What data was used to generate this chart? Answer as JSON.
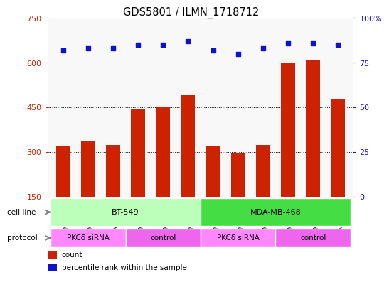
{
  "title": "GDS5801 / ILMN_1718712",
  "samples": [
    "GSM1338298",
    "GSM1338302",
    "GSM1338306",
    "GSM1338297",
    "GSM1338301",
    "GSM1338305",
    "GSM1338296",
    "GSM1338300",
    "GSM1338304",
    "GSM1338295",
    "GSM1338299",
    "GSM1338303"
  ],
  "bar_values": [
    320,
    335,
    325,
    445,
    450,
    490,
    320,
    295,
    325,
    600,
    610,
    480
  ],
  "dot_values": [
    82,
    83,
    83,
    85,
    85,
    87,
    82,
    80,
    83,
    86,
    86,
    85
  ],
  "bar_color": "#cc2200",
  "dot_color": "#1111cc",
  "ylim_left": [
    150,
    750
  ],
  "yticks_left": [
    150,
    300,
    450,
    600,
    750
  ],
  "ylim_right": [
    0,
    100
  ],
  "yticks_right": [
    0,
    25,
    50,
    75,
    100
  ],
  "cell_line_groups": [
    {
      "label": "BT-549",
      "start": 0,
      "end": 5,
      "color": "#bbffbb"
    },
    {
      "label": "MDA-MB-468",
      "start": 6,
      "end": 11,
      "color": "#44dd44"
    }
  ],
  "protocol_groups": [
    {
      "label": "PKCδ siRNA",
      "start": 0,
      "end": 2,
      "color": "#ff88ff"
    },
    {
      "label": "control",
      "start": 3,
      "end": 5,
      "color": "#ee66ee"
    },
    {
      "label": "PKCδ siRNA",
      "start": 6,
      "end": 8,
      "color": "#ff88ff"
    },
    {
      "label": "control",
      "start": 9,
      "end": 11,
      "color": "#ee66ee"
    }
  ],
  "legend_items": [
    {
      "label": "count",
      "color": "#cc2200"
    },
    {
      "label": "percentile rank within the sample",
      "color": "#1111cc"
    }
  ],
  "background_color": "#ffffff",
  "plot_bg_color": "#f8f8f8",
  "sample_box_color": "#cccccc",
  "tick_label_color_left": "#cc2200",
  "tick_label_color_right": "#1111cc",
  "label_arrow_color": "#808080"
}
